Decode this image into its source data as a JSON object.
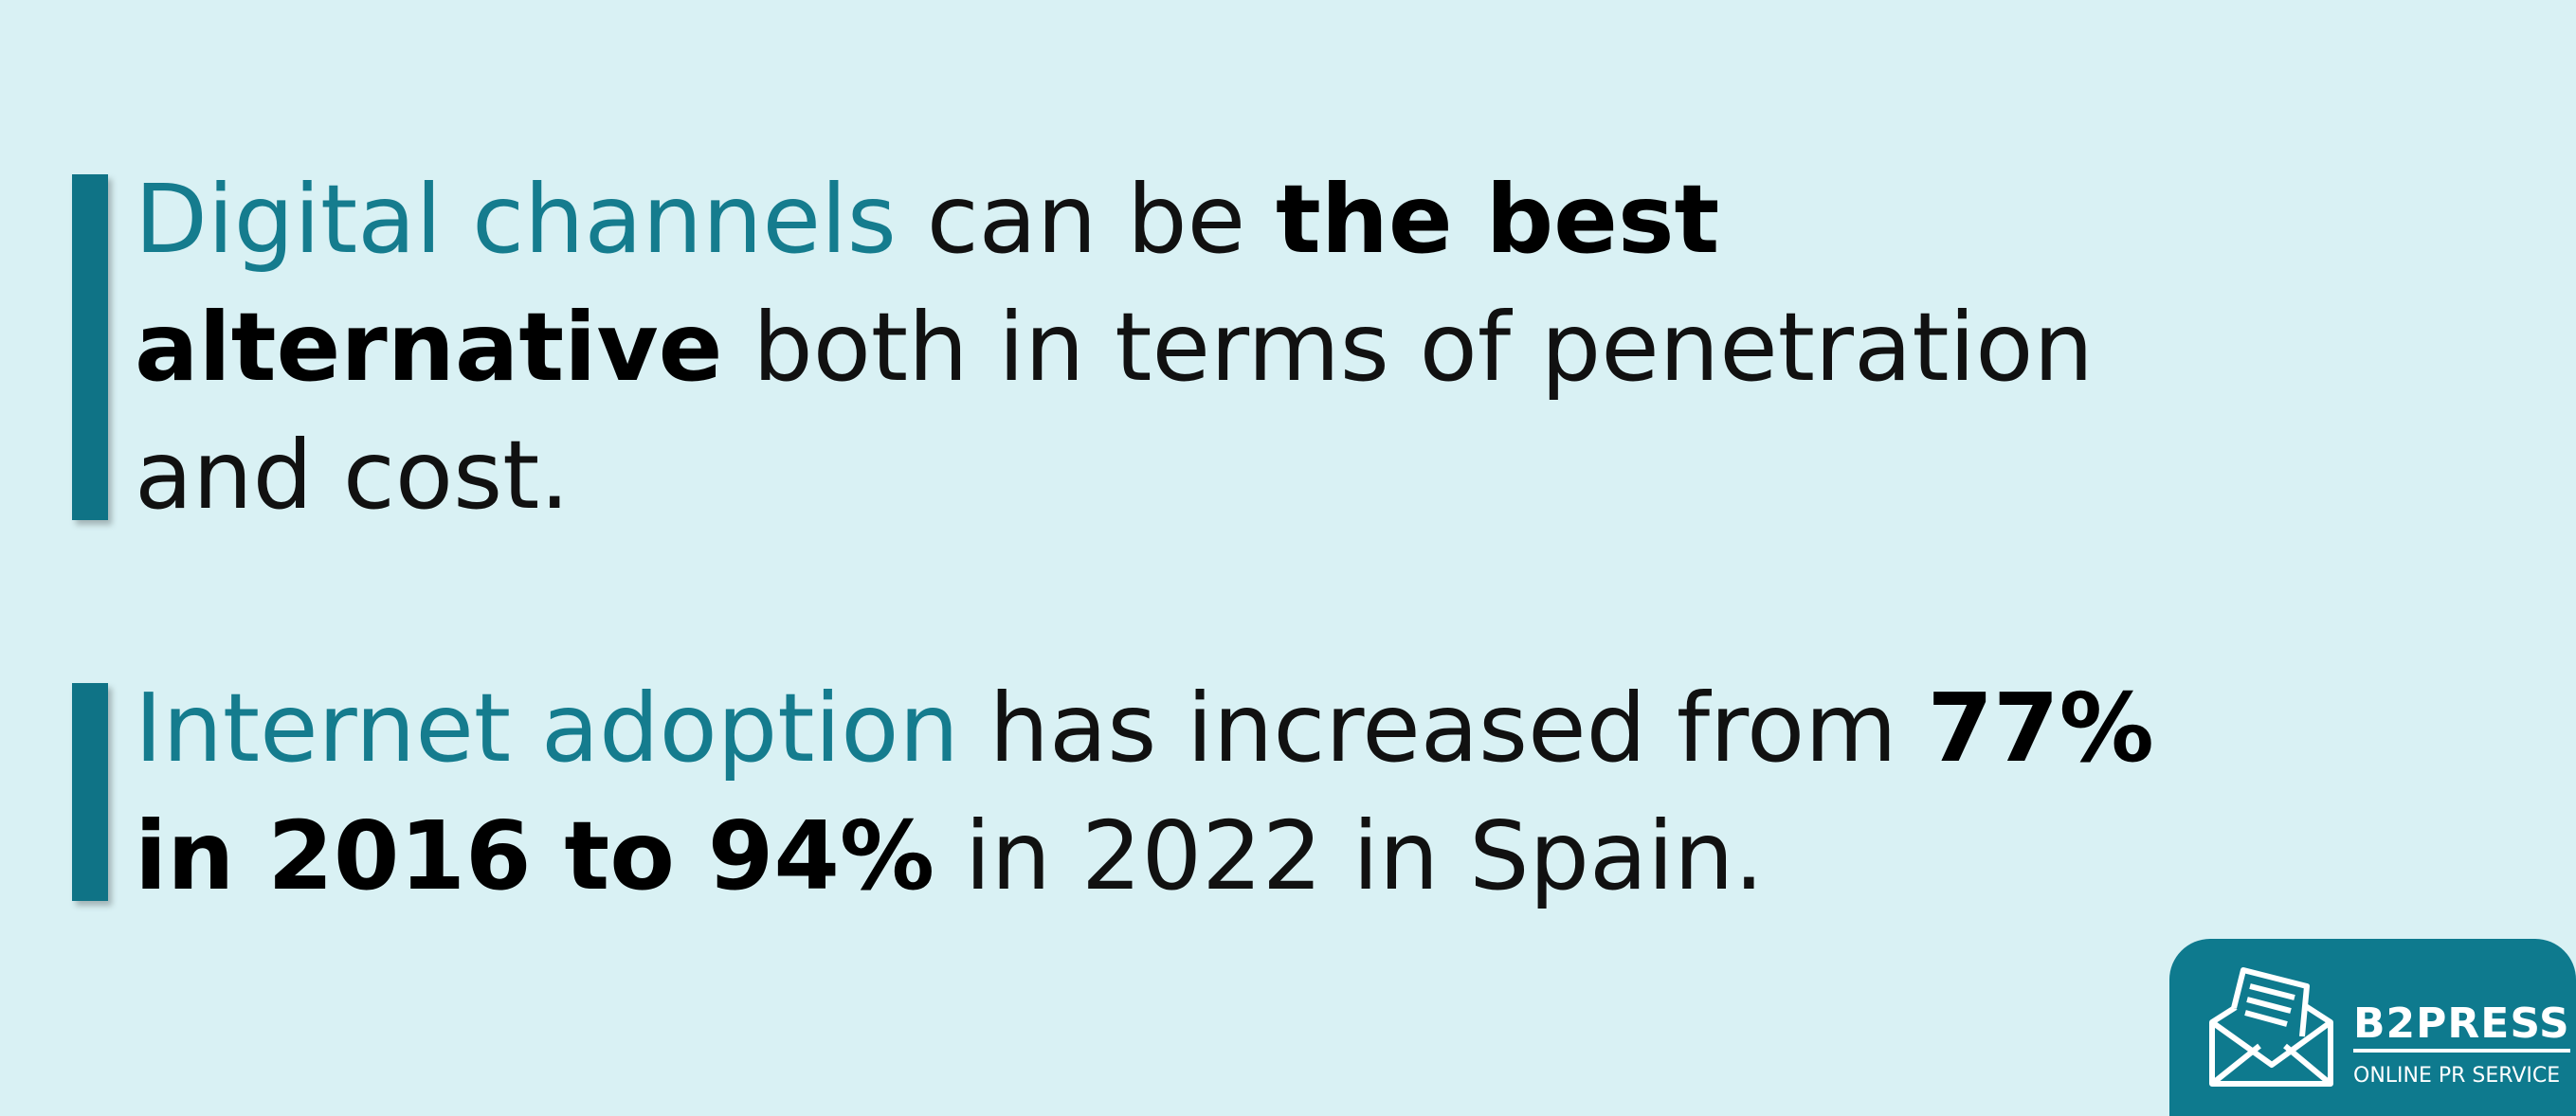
{
  "paragraphs": [
    {
      "lines": [
        [
          {
            "text": "Digital channels",
            "style": "accent"
          },
          {
            "text": "can be",
            "style": "regular"
          },
          {
            "text": "the best",
            "style": "bold"
          }
        ],
        [
          {
            "text": "alternative",
            "style": "bold"
          },
          {
            "text": "both in terms of penetration",
            "style": "regular"
          }
        ],
        [
          {
            "text": "and cost.",
            "style": "regular"
          }
        ]
      ]
    },
    {
      "lines": [
        [
          {
            "text": "Internet adoption",
            "style": "accent"
          },
          {
            "text": "has increased from",
            "style": "regular"
          },
          {
            "text": "77%",
            "style": "bold"
          }
        ],
        [
          {
            "text": "in 2016 to 94%",
            "style": "bold"
          },
          {
            "text": "in 2022 in Spain.",
            "style": "regular"
          }
        ]
      ]
    }
  ],
  "logo": {
    "name": "B2PRESS",
    "tagline": "ONLINE PR SERVICE"
  }
}
